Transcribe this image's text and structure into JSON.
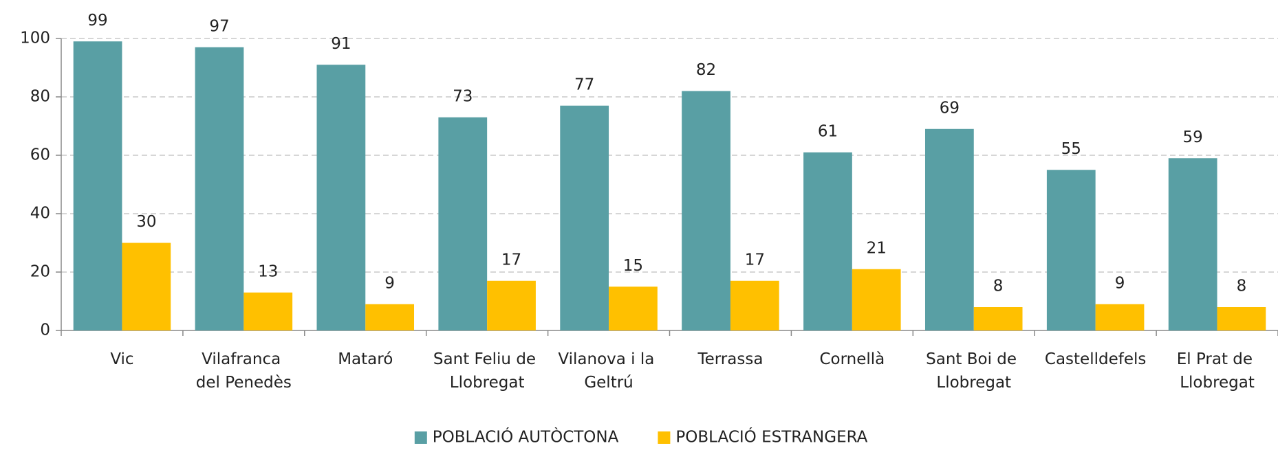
{
  "chart_data": {
    "type": "bar",
    "categories": [
      "Vic",
      "Vilafranca del Penedès",
      "Mataró",
      "Sant Feliu de Llobregat",
      "Vilanova i la Geltrú",
      "Terrassa",
      "Cornellà",
      "Sant Boi de Llobregat",
      "Castelldefels",
      "El Prat de Llobregat"
    ],
    "series": [
      {
        "name": "POBLACIÓ AUTÒCTONA",
        "color": "#599fa4",
        "values": [
          99,
          97,
          91,
          73,
          77,
          82,
          61,
          69,
          55,
          59
        ]
      },
      {
        "name": "POBLACIÓ ESTRANGERA",
        "color": "#ffc000",
        "values": [
          30,
          13,
          9,
          17,
          15,
          17,
          21,
          8,
          9,
          8
        ]
      }
    ],
    "ylim": [
      0,
      100
    ],
    "yticks": [
      0,
      20,
      40,
      60,
      80,
      100
    ],
    "grid": true,
    "legend": "bottom"
  }
}
